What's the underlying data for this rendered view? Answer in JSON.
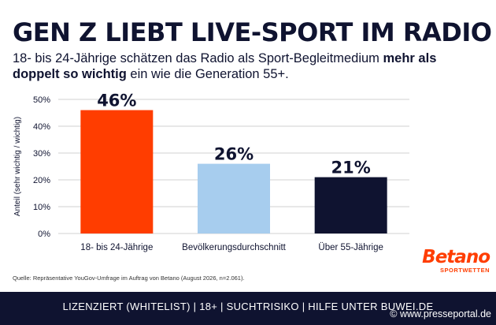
{
  "title": "GEN Z LIEBT LIVE-SPORT IM RADIO",
  "subtitle": {
    "part1": "18- bis 24-Jährige schätzen das Radio als Sport-Begleitmedium ",
    "bold": "mehr als doppelt so wichtig",
    "part2": " ein wie die Generation 55+."
  },
  "chart_data": {
    "type": "bar",
    "categories": [
      "18- bis 24-Jährige",
      "Bevölkerungsdurchschnitt",
      "Über 55-Jährige"
    ],
    "values": [
      46,
      26,
      21
    ],
    "value_labels": [
      "46%",
      "26%",
      "21%"
    ],
    "bar_colors": [
      "#ff3d00",
      "#a7cdee",
      "#0f1330"
    ],
    "ylabel": "Anteil (sehr wichtig / wichtig)",
    "ylim": [
      0,
      50
    ],
    "yticks": [
      0,
      10,
      20,
      30,
      40,
      50
    ],
    "ytick_labels": [
      "0%",
      "10%",
      "20%",
      "30%",
      "40%",
      "50%"
    ],
    "grid": true
  },
  "source": "Quelle: Repräsentative YouGov-Umfrage im Auftrag von Betano (August 2026, n=2.061).",
  "brand": {
    "name": "Betano",
    "sub": "SPORTWETTEN",
    "color": "#ff3d00"
  },
  "footer": {
    "text": "LIZENZIERT (WHITELIST) | 18+ | SUCHTRISIKO | HILFE UNTER BUWEI.DE",
    "watermark": "© www.presseportal.de"
  }
}
